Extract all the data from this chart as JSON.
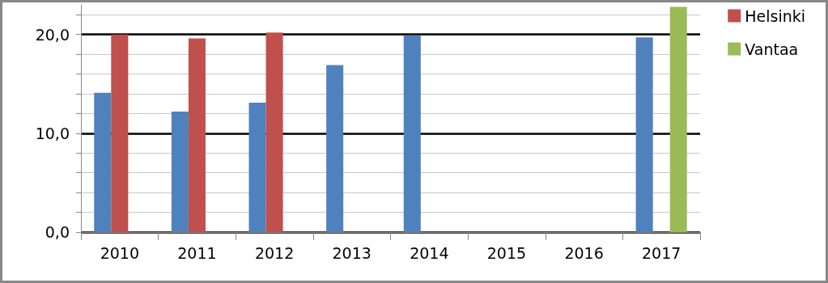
{
  "chart_data": {
    "type": "bar",
    "categories": [
      "2010",
      "2011",
      "2012",
      "2013",
      "2014",
      "2015",
      "2016",
      "2017"
    ],
    "series": [
      {
        "color": "#4f81bd",
        "values": [
          14.1,
          12.2,
          13.1,
          16.9,
          19.9,
          null,
          null,
          19.7
        ]
      },
      {
        "name": "Helsinki",
        "color": "#c0504d",
        "values": [
          20.0,
          19.6,
          20.2,
          null,
          null,
          null,
          null,
          null
        ]
      },
      {
        "name": "Vantaa",
        "color": "#9bbb59",
        "values": [
          null,
          null,
          null,
          null,
          null,
          null,
          null,
          22.8
        ]
      }
    ],
    "ylim": [
      0,
      23
    ],
    "yticks": [
      {
        "value": 0,
        "label": "0,0"
      },
      {
        "value": 2,
        "label": null
      },
      {
        "value": 4,
        "label": null
      },
      {
        "value": 6,
        "label": null
      },
      {
        "value": 8,
        "label": null
      },
      {
        "value": 10,
        "label": "10,0"
      },
      {
        "value": 12,
        "label": null
      },
      {
        "value": 14,
        "label": null
      },
      {
        "value": 16,
        "label": null
      },
      {
        "value": 18,
        "label": null
      },
      {
        "value": 20,
        "label": "20,0"
      },
      {
        "value": 22,
        "label": null
      }
    ],
    "grid": "y",
    "legend": "right"
  }
}
